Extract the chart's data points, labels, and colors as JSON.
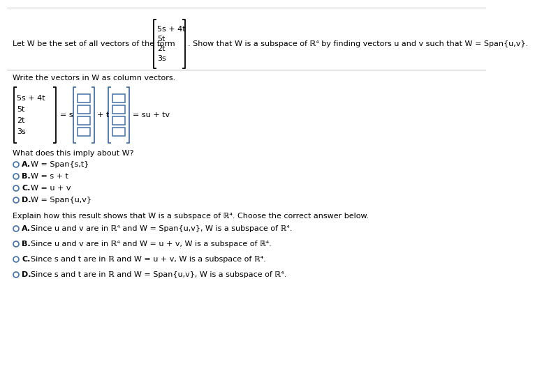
{
  "bg_color": "#ffffff",
  "text_color": "#000000",
  "blue_color": "#4472a8",
  "title_text": "Let W be the set of all vectors of the form",
  "show_text": ". Show that W is a subspace of ℝ⁴ by finding vectors u and v such that W = Span{u,v}.",
  "vector_entries": [
    "5s + 4t",
    "5t",
    "2t",
    "3s"
  ],
  "write_label": "Write the vectors in W as column vectors.",
  "what_label": "What does this imply about W?",
  "explain_label": "Explain how this result shows that W is a subspace of ℝ⁴. Choose the correct answer below.",
  "eq_su_tv": "= su + tv",
  "eq_s": "= s",
  "eq_t": "+ t",
  "mc1_options": [
    [
      "A.",
      "W = Span{s,t}"
    ],
    [
      "B.",
      "W = s + t"
    ],
    [
      "C.",
      "W = u + v"
    ],
    [
      "D.",
      "W = Span{u,v}"
    ]
  ],
  "mc1_correct": -1,
  "mc2_options": [
    [
      "A.",
      "Since u and v are in ℝ⁴ and W = Span{u,v}, W is a subspace of ℝ⁴."
    ],
    [
      "B.",
      "Since u and v are in ℝ⁴ and W = u + v, W is a subspace of ℝ⁴."
    ],
    [
      "C.",
      "Since s and t are in ℝ and W = u + v, W is a subspace of ℝ⁴."
    ],
    [
      "D.",
      "Since s and t are in ℝ and W = Span{u,v}, W is a subspace of ℝ⁴."
    ]
  ],
  "mc2_correct": -1,
  "font_size": 8.0,
  "small_font": 7.5
}
